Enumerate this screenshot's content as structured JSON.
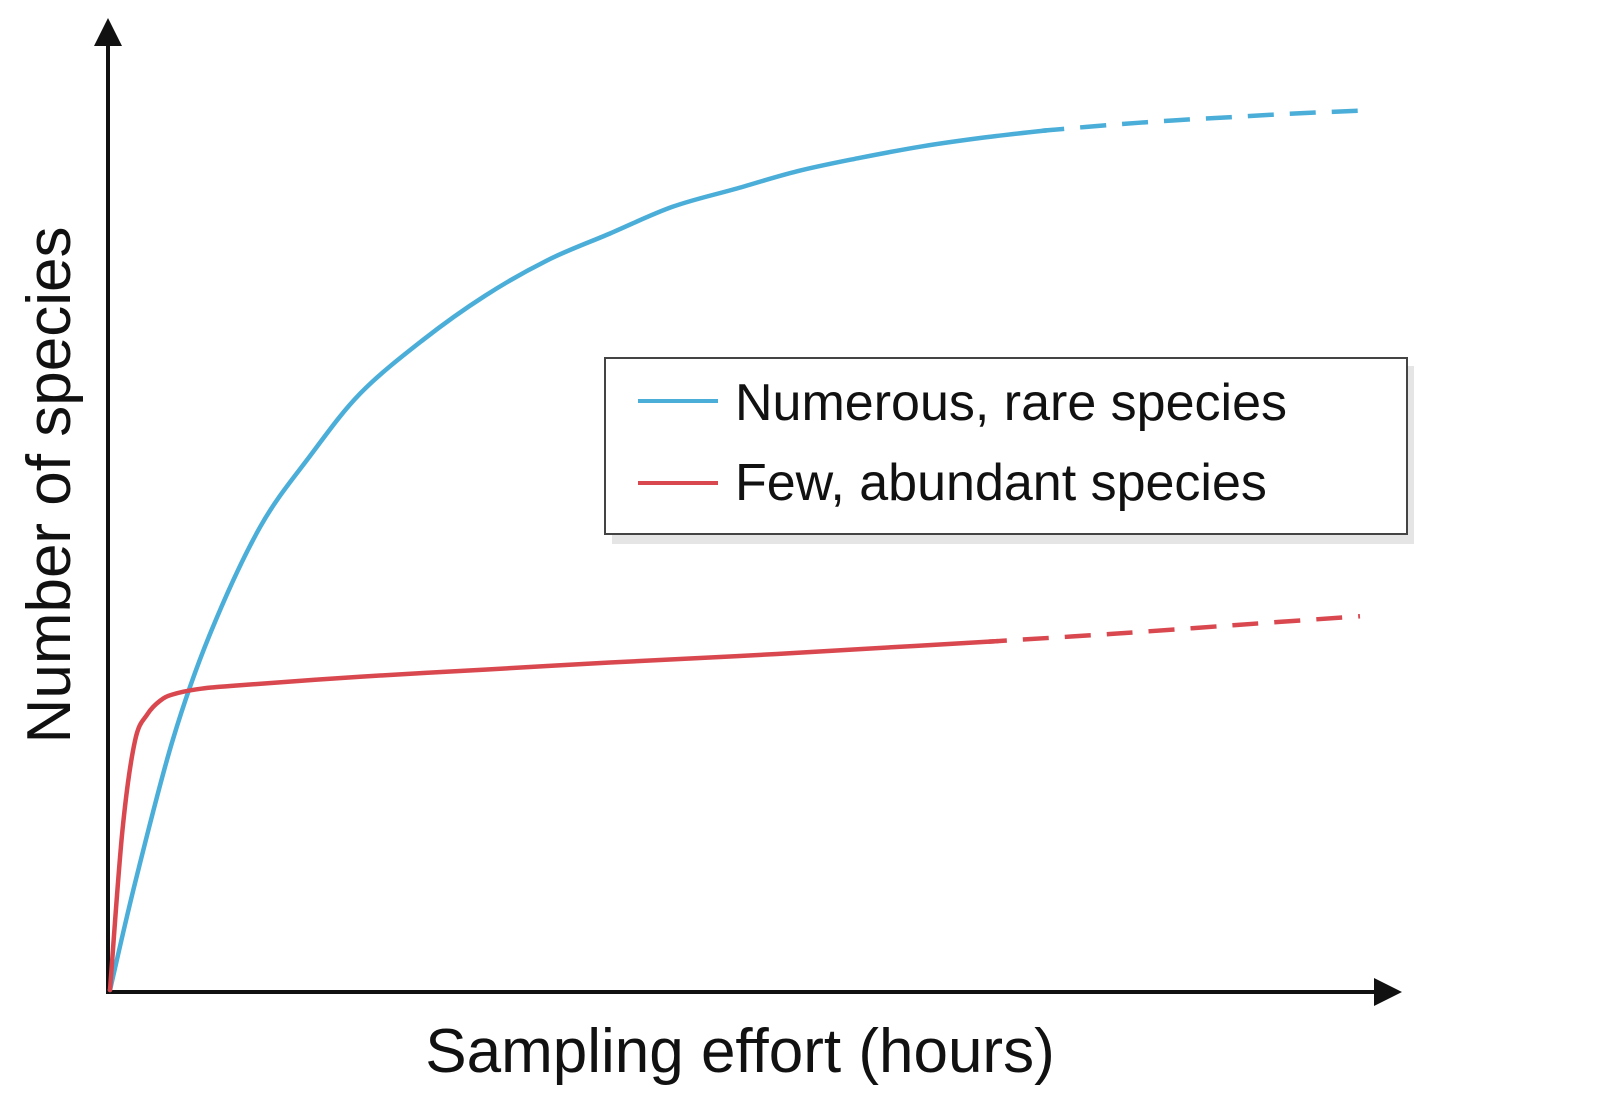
{
  "chart_data": {
    "type": "line",
    "title": "",
    "xlabel": "Sampling effort (hours)",
    "ylabel": "Number of species",
    "xlim": [
      0,
      100
    ],
    "ylim": [
      0,
      100
    ],
    "grid": false,
    "ticks": false,
    "legend_position": "center-right",
    "series": [
      {
        "name": "Numerous, rare species",
        "color": "#4aaed9",
        "solid_until_x": 75,
        "x": [
          0,
          2,
          5,
          8,
          12,
          16,
          20,
          25,
          30,
          35,
          40,
          45,
          50,
          55,
          60,
          65,
          70,
          75,
          80,
          85,
          90,
          95,
          100
        ],
        "y": [
          0,
          12,
          28,
          40,
          52,
          60,
          67,
          73,
          78,
          82,
          85,
          88,
          90,
          92,
          93.5,
          94.8,
          95.8,
          96.6,
          97.2,
          97.7,
          98.1,
          98.5,
          98.8
        ]
      },
      {
        "name": "Few, abundant species",
        "color": "#d9484f",
        "solid_until_x": 71,
        "x": [
          0,
          1,
          2,
          3,
          4,
          5,
          7,
          10,
          20,
          30,
          40,
          50,
          60,
          71,
          80,
          90,
          100
        ],
        "y": [
          0,
          18,
          28,
          31,
          32.5,
          33.2,
          33.8,
          34.2,
          35.2,
          36.0,
          36.8,
          37.5,
          38.3,
          39.2,
          40.0,
          41.0,
          42.0
        ]
      }
    ]
  }
}
